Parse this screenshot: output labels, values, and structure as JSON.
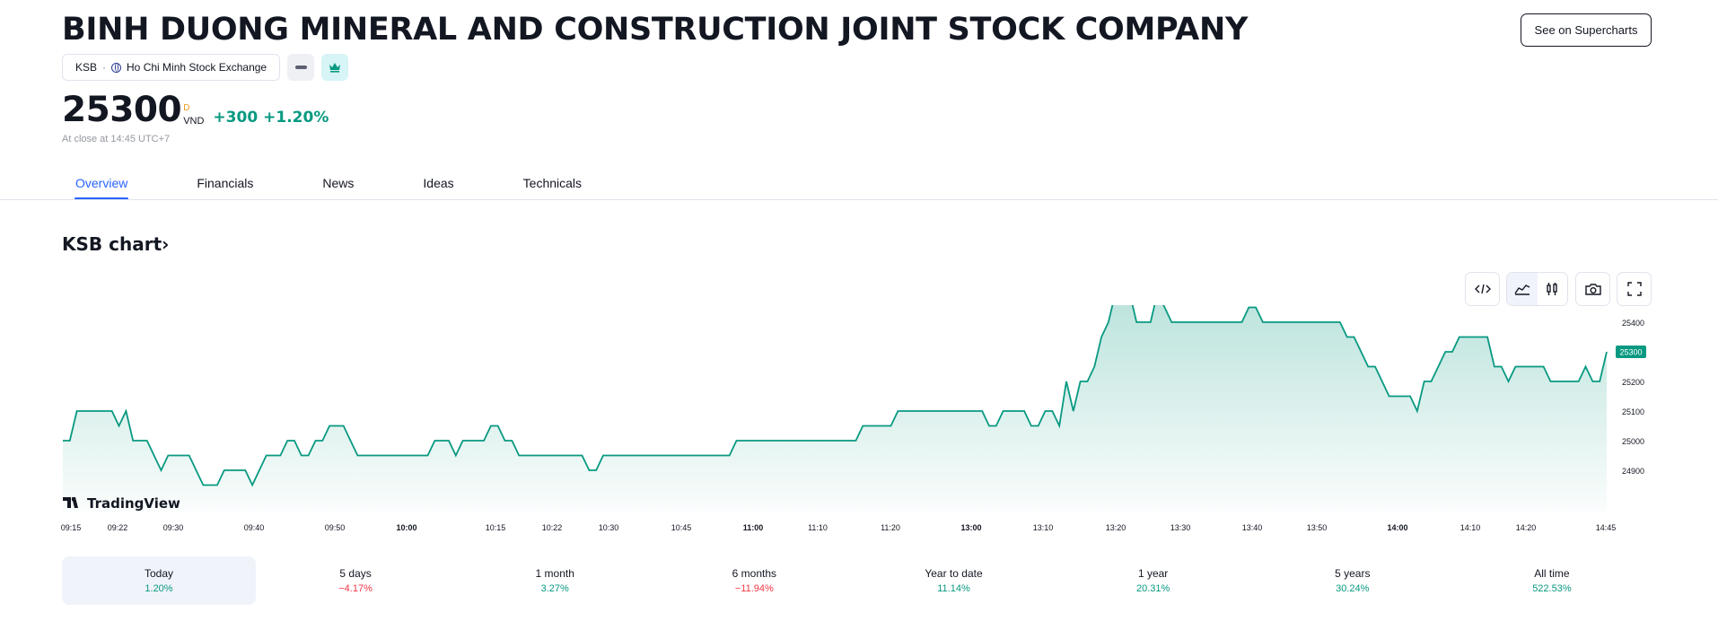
{
  "company": {
    "title": "BINH DUONG MINERAL AND CONSTRUCTION JOINT STOCK COMPANY"
  },
  "symbol": {
    "ticker": "KSB",
    "separator": "·",
    "exchange": "Ho Chi Minh Stock Exchange"
  },
  "actions": {
    "supercharts_label": "See on Supercharts"
  },
  "quote": {
    "price": "25300",
    "d_badge": "D",
    "currency": "VND",
    "change": "+300",
    "change_pct": "+1.20%",
    "close_note": "At close at 14:45 UTC+7"
  },
  "tabs": [
    {
      "label": "Overview",
      "active": true
    },
    {
      "label": "Financials"
    },
    {
      "label": "News"
    },
    {
      "label": "Ideas"
    },
    {
      "label": "Technicals"
    }
  ],
  "chart_section": {
    "title": "KSB chart›",
    "brand": "TradingView"
  },
  "toolbar_icons": [
    "embed-code-icon",
    "area-chart-icon",
    "candles-icon",
    "camera-icon",
    "fullscreen-icon"
  ],
  "colors": {
    "line": "#089981",
    "accent": "#2962ff",
    "negative": "#f23645"
  },
  "chart_data": {
    "type": "area",
    "series": [
      {
        "values": [
          25000,
          25000,
          25100,
          25100,
          25100,
          25100,
          25100,
          25100,
          25050,
          25100,
          25000,
          25000,
          25000,
          24950,
          24900,
          24950,
          24950,
          24950,
          24950,
          24900,
          24850,
          24850,
          24850,
          24900,
          24900,
          24900,
          24900,
          24850,
          24900,
          24950,
          24950,
          24950,
          25000,
          25000,
          24950,
          24950,
          25000,
          25000,
          25050,
          25050,
          25050,
          25000,
          24950,
          24950,
          24950,
          24950,
          24950,
          24950,
          24950,
          24950,
          24950,
          24950,
          24950,
          25000,
          25000,
          25000,
          24950,
          25000,
          25000,
          25000,
          25000,
          25050,
          25050,
          25000,
          25000,
          24950,
          24950,
          24950,
          24950,
          24950,
          24950,
          24950,
          24950,
          24950,
          24950,
          24900,
          24900,
          24950,
          24950,
          24950,
          24950,
          24950,
          24950,
          24950,
          24950,
          24950,
          24950,
          24950,
          24950,
          24950,
          24950,
          24950,
          24950,
          24950,
          24950,
          24950,
          25000,
          25000,
          25000,
          25000,
          25000,
          25000,
          25000,
          25000,
          25000,
          25000,
          25000,
          25000,
          25000,
          25000,
          25000,
          25000,
          25000,
          25000,
          25050,
          25050,
          25050,
          25050,
          25050,
          25100,
          25100,
          25100,
          25100,
          25100,
          25100,
          25100,
          25100,
          25100,
          25100,
          25100,
          25100,
          25100,
          25050,
          25050,
          25100,
          25100,
          25100,
          25100,
          25050,
          25050,
          25100,
          25100,
          25050,
          25200,
          25100,
          25200,
          25200,
          25250,
          25350,
          25400,
          25500,
          25500,
          25500,
          25400,
          25400,
          25400,
          25500,
          25450,
          25400,
          25400,
          25400,
          25400,
          25400,
          25400,
          25400,
          25400,
          25400,
          25400,
          25400,
          25450,
          25450,
          25400,
          25400,
          25400,
          25400,
          25400,
          25400,
          25400,
          25400,
          25400,
          25400,
          25400,
          25400,
          25350,
          25350,
          25300,
          25250,
          25250,
          25200,
          25150,
          25150,
          25150,
          25150,
          25100,
          25200,
          25200,
          25250,
          25300,
          25300,
          25350,
          25350,
          25350,
          25350,
          25350,
          25250,
          25250,
          25200,
          25250,
          25250,
          25250,
          25250,
          25250,
          25200,
          25200,
          25200,
          25200,
          25200,
          25250,
          25200,
          25200,
          25300
        ]
      }
    ],
    "x_ticks": [
      {
        "label": "09:15",
        "bold": false
      },
      {
        "label": "09:22",
        "bold": false
      },
      {
        "label": "09:30",
        "bold": false
      },
      {
        "label": "09:40",
        "bold": false
      },
      {
        "label": "09:50",
        "bold": false
      },
      {
        "label": "10:00",
        "bold": true
      },
      {
        "label": "10:15",
        "bold": false
      },
      {
        "label": "10:22",
        "bold": false
      },
      {
        "label": "10:30",
        "bold": false
      },
      {
        "label": "10:45",
        "bold": false
      },
      {
        "label": "11:00",
        "bold": true
      },
      {
        "label": "11:10",
        "bold": false
      },
      {
        "label": "11:20",
        "bold": false
      },
      {
        "label": "13:00",
        "bold": true
      },
      {
        "label": "13:10",
        "bold": false
      },
      {
        "label": "13:20",
        "bold": false
      },
      {
        "label": "13:30",
        "bold": false
      },
      {
        "label": "13:40",
        "bold": false
      },
      {
        "label": "13:50",
        "bold": false
      },
      {
        "label": "14:00",
        "bold": true
      },
      {
        "label": "14:10",
        "bold": false
      },
      {
        "label": "14:20",
        "bold": false
      },
      {
        "label": "14:45",
        "bold": false
      }
    ],
    "y_ticks": [
      "25400",
      "25200",
      "25100",
      "25000",
      "24900"
    ],
    "ylim": [
      24850,
      25500
    ],
    "last_value_label": "25300",
    "grid": false
  },
  "periods": [
    {
      "label": "Today",
      "value": "1.20%",
      "dir": "pos",
      "active": true
    },
    {
      "label": "5 days",
      "value": "−4.17%",
      "dir": "neg"
    },
    {
      "label": "1 month",
      "value": "3.27%",
      "dir": "pos"
    },
    {
      "label": "6 months",
      "value": "−11.94%",
      "dir": "neg"
    },
    {
      "label": "Year to date",
      "value": "11.14%",
      "dir": "pos"
    },
    {
      "label": "1 year",
      "value": "20.31%",
      "dir": "pos"
    },
    {
      "label": "5 years",
      "value": "30.24%",
      "dir": "pos"
    },
    {
      "label": "All time",
      "value": "522.53%",
      "dir": "pos"
    }
  ]
}
